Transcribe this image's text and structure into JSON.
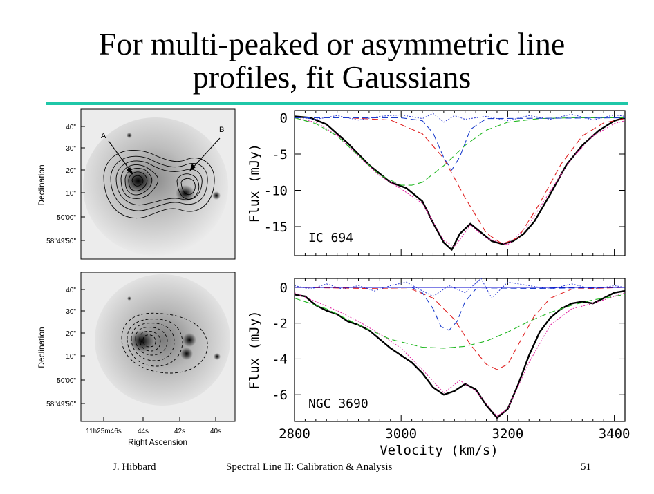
{
  "slide": {
    "title_line1": "For multi-peaked or asymmetric line",
    "title_line2": "profiles, fit Gaussians",
    "footer_author": "J. Hibbard",
    "footer_course": "Spectral Line II: Calibration & Analysis",
    "page_number": "51",
    "rule_color": "#1fc7a8"
  },
  "images": {
    "dec_axis_label": "Declination",
    "ra_axis_label": "Right Ascension",
    "top": {
      "dec_ticks": [
        "40\"",
        "30\"",
        "20\"",
        "10\"",
        "50'00\"",
        "58°49'50\""
      ],
      "marker_a": "A",
      "marker_b": "B"
    },
    "bottom": {
      "dec_ticks": [
        "40\"",
        "30\"",
        "20\"",
        "10\"",
        "50'00\"",
        "58°49'50\""
      ],
      "ra_ticks": [
        "11h25m46s",
        "44s",
        "42s",
        "40s"
      ]
    }
  },
  "chart_data": [
    {
      "type": "line",
      "label": "IC 694",
      "xlabel": "",
      "ylabel": "Flux (mJy)",
      "xlim": [
        2800,
        3420
      ],
      "ylim": [
        -19,
        1
      ],
      "yticks": [
        0,
        -5,
        -10,
        -15
      ],
      "ytick_labels": [
        "0",
        "-5",
        "-10",
        "-15"
      ],
      "series": [
        {
          "color": "#000000",
          "style": "solid-thick",
          "x": [
            2800,
            2830,
            2860,
            2900,
            2940,
            2980,
            3010,
            3040,
            3060,
            3080,
            3095,
            3110,
            3130,
            3150,
            3170,
            3190,
            3210,
            3230,
            3250,
            3280,
            3310,
            3340,
            3370,
            3400,
            3420
          ],
          "y": [
            0.2,
            0.0,
            -0.9,
            -3.5,
            -6.5,
            -8.9,
            -9.7,
            -11.5,
            -14.5,
            -17.2,
            -18.2,
            -16.0,
            -14.6,
            -15.8,
            -17.0,
            -17.4,
            -17.0,
            -16.0,
            -14.3,
            -10.5,
            -6.5,
            -3.8,
            -1.8,
            -0.4,
            0.0
          ]
        },
        {
          "color": "#e0209f",
          "style": "dotted",
          "x": [
            2800,
            2840,
            2880,
            2920,
            2960,
            3000,
            3040,
            3080,
            3100,
            3130,
            3160,
            3200,
            3240,
            3280,
            3320,
            3360,
            3400,
            3420
          ],
          "y": [
            0.0,
            -0.6,
            -2.4,
            -5.3,
            -8.0,
            -9.8,
            -11.8,
            -16.9,
            -17.8,
            -14.8,
            -16.6,
            -17.5,
            -14.7,
            -10.1,
            -5.6,
            -2.5,
            -0.8,
            -0.4
          ]
        },
        {
          "color": "#22b822",
          "style": "dashed",
          "x": [
            2800,
            2840,
            2880,
            2920,
            2960,
            3000,
            3020,
            3040,
            3080,
            3120,
            3160,
            3200,
            3260,
            3320,
            3420
          ],
          "y": [
            0.0,
            -0.8,
            -2.5,
            -5.2,
            -7.9,
            -9.3,
            -9.3,
            -8.9,
            -6.6,
            -3.8,
            -1.7,
            -0.6,
            -0.1,
            0.0,
            0.0
          ]
        },
        {
          "color": "#e02020",
          "style": "dashed",
          "x": [
            2800,
            2900,
            2980,
            3040,
            3080,
            3120,
            3160,
            3190,
            3220,
            3260,
            3300,
            3340,
            3380,
            3420
          ],
          "y": [
            0.0,
            0.0,
            -0.3,
            -2.2,
            -5.6,
            -11.0,
            -15.9,
            -17.4,
            -16.5,
            -11.8,
            -6.4,
            -2.5,
            -0.7,
            -0.1
          ]
        },
        {
          "color": "#1a3ccc",
          "style": "dashed",
          "x": [
            2800,
            3000,
            3040,
            3060,
            3080,
            3095,
            3110,
            3130,
            3160,
            3420
          ],
          "y": [
            0.0,
            0.0,
            -0.4,
            -2.1,
            -5.5,
            -7.2,
            -5.4,
            -1.6,
            -0.1,
            0.0
          ]
        },
        {
          "color": "#2a3ad0",
          "style": "dotted",
          "x": [
            2800,
            2840,
            2880,
            2920,
            2960,
            3000,
            3040,
            3060,
            3080,
            3100,
            3120,
            3160,
            3200,
            3240,
            3280,
            3320,
            3360,
            3400,
            3420
          ],
          "y": [
            0.1,
            -0.2,
            0.3,
            -0.3,
            0.2,
            0.4,
            -0.1,
            0.6,
            -0.6,
            0.3,
            -0.2,
            0.2,
            -0.4,
            0.3,
            -0.2,
            0.5,
            -0.3,
            0.4,
            0.2
          ]
        }
      ]
    },
    {
      "type": "line",
      "label": "NGC 3690",
      "xlabel": "Velocity (km/s)",
      "ylabel": "Flux (mJy)",
      "xlim": [
        2800,
        3420
      ],
      "ylim": [
        -7.5,
        0.5
      ],
      "xticks": [
        2800,
        3000,
        3200,
        3400
      ],
      "xtick_labels": [
        "2800",
        "3000",
        "3200",
        "3400"
      ],
      "yticks": [
        0,
        -2,
        -4,
        -6
      ],
      "ytick_labels": [
        "0",
        "-2",
        "-4",
        "-6"
      ],
      "series": [
        {
          "color": "#000000",
          "style": "solid-thick",
          "x": [
            2800,
            2820,
            2840,
            2860,
            2880,
            2900,
            2920,
            2940,
            2960,
            2980,
            3000,
            3020,
            3040,
            3060,
            3080,
            3100,
            3120,
            3140,
            3160,
            3180,
            3200,
            3220,
            3240,
            3260,
            3280,
            3300,
            3320,
            3340,
            3360,
            3380,
            3400,
            3420
          ],
          "y": [
            -0.4,
            -0.5,
            -1.0,
            -1.3,
            -1.5,
            -1.9,
            -2.1,
            -2.4,
            -2.9,
            -3.4,
            -3.8,
            -4.2,
            -4.8,
            -5.6,
            -6.0,
            -5.8,
            -5.4,
            -5.7,
            -6.6,
            -7.3,
            -6.8,
            -5.4,
            -3.8,
            -2.5,
            -1.7,
            -1.2,
            -0.9,
            -0.8,
            -0.9,
            -0.6,
            -0.3,
            -0.2
          ]
        },
        {
          "color": "#e0209f",
          "style": "dotted",
          "x": [
            2800,
            2840,
            2880,
            2920,
            2960,
            3000,
            3040,
            3080,
            3110,
            3140,
            3180,
            3200,
            3240,
            3280,
            3320,
            3360,
            3400,
            3420
          ],
          "y": [
            -0.3,
            -0.8,
            -1.3,
            -1.9,
            -2.6,
            -3.4,
            -4.6,
            -5.9,
            -5.2,
            -5.8,
            -7.2,
            -6.8,
            -4.2,
            -2.1,
            -1.2,
            -0.9,
            -0.5,
            -0.3
          ]
        },
        {
          "color": "#22b822",
          "style": "dashed",
          "x": [
            2800,
            2860,
            2920,
            2980,
            3040,
            3080,
            3120,
            3160,
            3200,
            3240,
            3280,
            3320,
            3360,
            3420
          ],
          "y": [
            -0.6,
            -1.2,
            -2.1,
            -2.9,
            -3.35,
            -3.4,
            -3.3,
            -3.0,
            -2.5,
            -1.9,
            -1.4,
            -1.0,
            -0.7,
            -0.4
          ]
        },
        {
          "color": "#e02020",
          "style": "dashed",
          "x": [
            2800,
            3020,
            3060,
            3100,
            3130,
            3160,
            3180,
            3200,
            3220,
            3250,
            3280,
            3320,
            3420
          ],
          "y": [
            0.0,
            -0.1,
            -0.6,
            -1.8,
            -3.2,
            -4.3,
            -4.6,
            -4.3,
            -3.2,
            -1.6,
            -0.6,
            -0.1,
            0.0
          ]
        },
        {
          "color": "#1a3ccc",
          "style": "dashed",
          "x": [
            2800,
            3020,
            3040,
            3060,
            3075,
            3090,
            3105,
            3120,
            3140,
            3420
          ],
          "y": [
            0.0,
            0.0,
            -0.3,
            -1.2,
            -2.2,
            -2.4,
            -1.9,
            -0.8,
            -0.1,
            0.0
          ]
        },
        {
          "color": "#2a3ad0",
          "style": "dotted",
          "x": [
            2800,
            2830,
            2860,
            2890,
            2920,
            2950,
            2980,
            3010,
            3040,
            3060,
            3090,
            3120,
            3150,
            3170,
            3200,
            3240,
            3280,
            3320,
            3360,
            3400,
            3420
          ],
          "y": [
            0.1,
            -0.1,
            0.2,
            -0.1,
            0.1,
            -0.2,
            0.1,
            0.3,
            -0.2,
            -0.5,
            0.1,
            -0.3,
            0.5,
            -0.6,
            0.3,
            0.1,
            -0.1,
            0.2,
            -0.1,
            0.1,
            0.0
          ]
        },
        {
          "color": "#0000cc",
          "style": "solid-thin",
          "x": [
            2800,
            3420
          ],
          "y": [
            0.0,
            0.0
          ]
        }
      ]
    }
  ]
}
